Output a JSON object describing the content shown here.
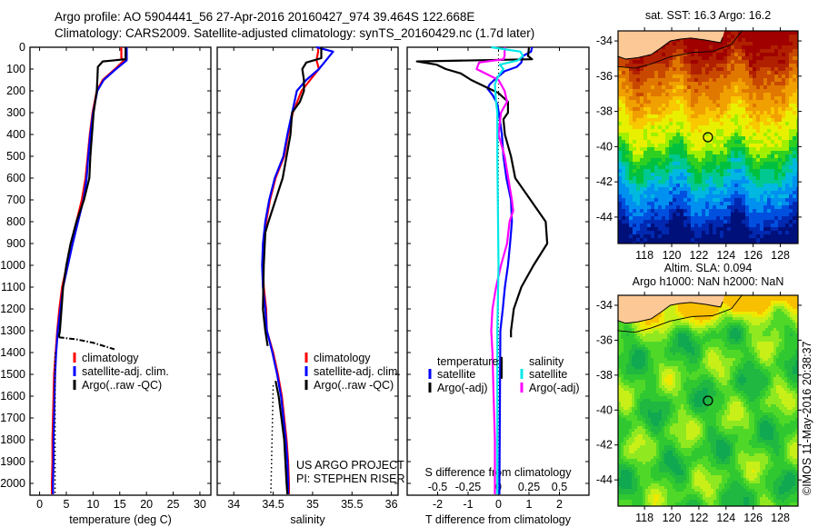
{
  "header": {
    "title_line1": "Argo profile: AO 5904441_56 27-Apr-2016 20160427_974 39.464S 122.668E",
    "title_line2": "Climatology: CARS2009. Satellite-adjusted climatology: synTS_20160429.nc (1.7d later)"
  },
  "colors": {
    "climatology": "#ff0000",
    "satellite": "#0000ff",
    "argo": "#000000",
    "s_satellite": "#00e8e8",
    "s_argo": "#ff00ff",
    "land": "#fcc896"
  },
  "chart_data": {
    "type": "line",
    "depth_axis": {
      "ylim": [
        0,
        2050
      ],
      "ticks": [
        0,
        100,
        200,
        300,
        400,
        500,
        600,
        700,
        800,
        900,
        1000,
        1100,
        1200,
        1300,
        1400,
        1500,
        1600,
        1700,
        1800,
        1900,
        2000
      ]
    },
    "panels": [
      {
        "name": "temperature",
        "xlabel": "temperature (deg C)",
        "xlim": [
          -1.8,
          32.05
        ],
        "xticks": [
          "0",
          "5",
          "10",
          "15",
          "20",
          "25",
          "30"
        ],
        "legend": [
          "climatology",
          "satellite-adj. clim.",
          "Argo(..raw -QC)"
        ],
        "series": [
          {
            "name": "climatology",
            "color": "#ff0000",
            "depth": [
              0,
              50,
              60,
              100,
              150,
              200,
              300,
              400,
              500,
              600,
              700,
              800,
              900,
              1000,
              1100,
              1200,
              1300,
              1400,
              1500,
              1600,
              1700,
              1800,
              1900,
              2000,
              2050
            ],
            "value": [
              15.3,
              15.3,
              15.8,
              14.1,
              11.8,
              10.7,
              9.9,
              9.4,
              9.0,
              8.6,
              7.9,
              6.9,
              5.9,
              5.1,
              4.2,
              3.7,
              3.3,
              3.0,
              2.7,
              2.6,
              2.5,
              2.4,
              2.4,
              2.3,
              2.3
            ]
          },
          {
            "name": "satellite-adj. clim.",
            "color": "#0000ff",
            "depth": [
              0,
              50,
              60,
              100,
              150,
              200,
              300,
              400,
              500,
              600,
              700,
              800,
              900,
              1000,
              1100,
              1200,
              1300,
              1400,
              1500,
              1600,
              1700,
              1800,
              1900,
              2000,
              2050
            ],
            "value": [
              16.3,
              16.3,
              16.3,
              14.3,
              12.0,
              10.8,
              10.0,
              9.5,
              9.1,
              8.8,
              8.2,
              7.2,
              6.2,
              5.3,
              4.4,
              3.9,
              3.4,
              3.1,
              2.9,
              2.8,
              2.7,
              2.6,
              2.6,
              2.5,
              2.5
            ]
          },
          {
            "name": "Argo",
            "color": "#000000",
            "depth": [
              0,
              55,
              65,
              90,
              150,
              200,
              300,
              400,
              500,
              600,
              700,
              800,
              900,
              1000,
              1100,
              1200,
              1300,
              1330
            ],
            "value": [
              16.1,
              16.1,
              11.8,
              10.9,
              10.8,
              10.7,
              10.1,
              9.8,
              9.5,
              9.3,
              8.3,
              6.9,
              5.8,
              5.0,
              4.4,
              4.1,
              3.8,
              3.6
            ]
          },
          {
            "name": "Argo raw (QC-flagged)",
            "color": "#000000",
            "style": "dashdot",
            "depth": [
              1330,
              1340,
              1355,
              1385
            ],
            "value": [
              3.6,
              7,
              10,
              14
            ]
          },
          {
            "name": "Argo raw (QC-flagged) deep",
            "color": "#000000",
            "style": "dotted",
            "depth": [
              1400,
              2050
            ],
            "value": [
              2.9,
              2.9
            ]
          }
        ]
      },
      {
        "name": "salinity",
        "xlabel": "salinity",
        "xlim": [
          33.79,
          36.085
        ],
        "xticks": [
          "34",
          "34.5",
          "35",
          "35.5",
          "36"
        ],
        "legend": [
          "climatology",
          "satellite-adj. clim.",
          "Argo(..raw -QC)"
        ],
        "credit": [
          "US ARGO PROJECT",
          "PI: STEPHEN RISER"
        ],
        "series": [
          {
            "name": "climatology",
            "color": "#ff0000",
            "depth": [
              0,
              20,
              60,
              100,
              150,
              200,
              300,
              400,
              500,
              600,
              700,
              800,
              900,
              1000,
              1100,
              1200,
              1300,
              1400,
              1500,
              1600,
              1700,
              1800,
              1900,
              2000,
              2050
            ],
            "value": [
              35.07,
              35.07,
              35.05,
              35.08,
              34.97,
              34.86,
              34.75,
              34.69,
              34.64,
              34.53,
              34.46,
              34.41,
              34.38,
              34.37,
              34.38,
              34.41,
              34.42,
              34.5,
              34.56,
              34.61,
              34.64,
              34.67,
              34.69,
              34.7,
              34.7
            ]
          },
          {
            "name": "satellite-adj. clim.",
            "color": "#0000ff",
            "depth": [
              0,
              20,
              60,
              100,
              150,
              200,
              300,
              400,
              500,
              600,
              700,
              800,
              900,
              1000,
              1100,
              1200,
              1300,
              1400,
              1500,
              1600,
              1700,
              1800,
              1900,
              2000,
              2050
            ],
            "value": [
              35.05,
              35.26,
              35.17,
              35.08,
              34.92,
              34.8,
              34.74,
              34.68,
              34.63,
              34.52,
              34.45,
              34.4,
              34.37,
              34.36,
              34.37,
              34.4,
              34.42,
              34.49,
              34.55,
              34.6,
              34.63,
              34.66,
              34.68,
              34.69,
              34.69
            ]
          },
          {
            "name": "Argo",
            "color": "#000000",
            "depth": [
              0,
              50,
              70,
              100,
              150,
              200,
              250,
              300,
              400,
              500,
              600,
              700,
              800,
              850,
              1000,
              1200,
              1300,
              1370
            ],
            "value": [
              35.11,
              35.11,
              34.92,
              34.87,
              34.89,
              34.89,
              34.84,
              34.74,
              34.72,
              34.67,
              34.62,
              34.53,
              34.44,
              34.4,
              34.38,
              34.37,
              34.4,
              34.43
            ]
          },
          {
            "name": "Argo deep",
            "color": "#000000",
            "depth": [
              1530,
              1600,
              1800,
              2000,
              2050
            ],
            "value": [
              34.53,
              34.57,
              34.64,
              34.67,
              34.68
            ]
          },
          {
            "name": "Argo raw (QC-flagged) deep",
            "color": "#000000",
            "style": "dotted",
            "depth": [
              1550,
              2050
            ],
            "value": [
              34.5,
              34.47
            ]
          }
        ]
      },
      {
        "name": "difference",
        "xlabel": "T difference from climatology",
        "xlim": [
          -3,
          2.97
        ],
        "xticks": [
          "-2",
          "-1",
          "0",
          "1",
          "2"
        ],
        "s_label": "S difference from climatology",
        "s_xlim": [
          -0.75,
          0.7425
        ],
        "s_xticks": [
          "-0.5",
          "-0.25",
          "0",
          "0.25",
          "0.5"
        ],
        "legend": {
          "temperature": "temperature",
          "salinity": "salinity",
          "t_items": [
            "satellite",
            "Argo(-adj)"
          ],
          "s_items": [
            "satellite",
            "Argo(-adj)"
          ]
        },
        "series": [
          {
            "name": "T satellite",
            "axis": "T",
            "color": "#0000ff",
            "depth": [
              0,
              20,
              40,
              70,
              90,
              110,
              150,
              170,
              190,
              220,
              260,
              300,
              400,
              500,
              600,
              700,
              800,
              900,
              1000,
              1100,
              1200,
              1300,
              1500,
              2000,
              2050
            ],
            "value": [
              1.1,
              1.07,
              0.8,
              0.75,
              0.6,
              0.2,
              -0.14,
              -0.29,
              -0.36,
              -0.19,
              -0.04,
              0.01,
              0.11,
              0.16,
              0.26,
              0.41,
              0.44,
              0.38,
              0.31,
              0.21,
              0.14,
              0.06,
              0.05,
              0.03,
              0.03
            ]
          },
          {
            "name": "T Argo(-adj)",
            "axis": "T",
            "color": "#000000",
            "depth": [
              0,
              40,
              55,
              65,
              80,
              100,
              120,
              150,
              180,
              210,
              250,
              300,
              330,
              400,
              500,
              600,
              700,
              800,
              900,
              1000,
              1100,
              1200,
              1300,
              1330
            ],
            "value": [
              1.0,
              0.97,
              1.1,
              -2.68,
              -2.03,
              -1.73,
              -1.24,
              -0.9,
              -0.45,
              0,
              0.31,
              0.31,
              0.16,
              0.21,
              0.41,
              0.55,
              1.05,
              1.55,
              1.6,
              1.15,
              0.75,
              0.5,
              0.41,
              0.41
            ]
          },
          {
            "name": "T Argo(-adj) deep",
            "axis": "T",
            "color": "#000000",
            "depth": [
              1420,
              1520
            ],
            "value": [
              0.1,
              0.1
            ]
          },
          {
            "name": "S Argo(-adj)",
            "axis": "S",
            "color": "#ff00ff",
            "depth": [
              0,
              40,
              55,
              70,
              100,
              150,
              200,
              250,
              300,
              400,
              500,
              600,
              700,
              750,
              800,
              900,
              1000,
              1100,
              1200,
              1300,
              1400,
              1600,
              1800,
              2000,
              2050
            ],
            "value": [
              0.05,
              0.05,
              0.04,
              -0.16,
              -0.18,
              0.0,
              0.05,
              0.07,
              0.02,
              0.0,
              0.05,
              0.08,
              0.11,
              0.12,
              0.09,
              0.07,
              0.02,
              -0.02,
              -0.05,
              -0.06,
              -0.05,
              -0.04,
              -0.03,
              -0.03,
              -0.03
            ]
          },
          {
            "name": "S satellite",
            "axis": "S",
            "color": "#00e8e8",
            "depth": [
              0,
              20,
              40,
              60,
              80,
              100,
              130,
              170,
              250,
              300,
              500,
              1000,
              1300,
              2000,
              2050
            ],
            "value": [
              -0.06,
              0.18,
              0.2,
              0.16,
              0.01,
              0.04,
              0.0,
              -0.03,
              -0.02,
              -0.01,
              -0.01,
              0.0,
              -0.01,
              -0.01,
              -0.01
            ]
          }
        ]
      }
    ],
    "maps": [
      {
        "name": "sst",
        "title": "sat. SST: 16.3 Argo: 16.2",
        "lon_lim": [
          116.05,
          129.3
        ],
        "lat_lim": [
          -33.43,
          -45.5
        ],
        "lon_ticks": [
          "118",
          "120",
          "122",
          "124",
          "126",
          "128"
        ],
        "lat_ticks": [
          "-34",
          "-36",
          "-38",
          "-40",
          "-42",
          "-44"
        ],
        "argo_position": [
          122.668,
          -39.464
        ],
        "palette": [
          "#00107a",
          "#0028b0",
          "#0050e0",
          "#0090f0",
          "#00b8e0",
          "#00c890",
          "#00c040",
          "#30d020",
          "#a0f000",
          "#e8f000",
          "#f8c800",
          "#f0a000",
          "#e07800",
          "#c84800",
          "#b02000",
          "#a00000"
        ]
      },
      {
        "name": "sla",
        "title_line1": "Altim. SLA: 0.094",
        "title_line2": "Argo h1000: NaN h2000: NaN",
        "lon_lim": [
          116.05,
          129.3
        ],
        "lat_lim": [
          -33.43,
          -45.5
        ],
        "lon_ticks": [
          "118",
          "120",
          "122",
          "124",
          "126",
          "128"
        ],
        "lat_ticks": [
          "-34",
          "-36",
          "-38",
          "-40",
          "-42",
          "-44"
        ],
        "argo_position": [
          122.668,
          -39.464
        ],
        "palette": [
          "#10a850",
          "#20b840",
          "#30c830",
          "#50d828",
          "#90e820",
          "#c8f018",
          "#f0e800",
          "#f8c000"
        ]
      }
    ]
  },
  "footer": {
    "credit_vertical": "©IMOS 11-May-2016 20:38:37"
  }
}
